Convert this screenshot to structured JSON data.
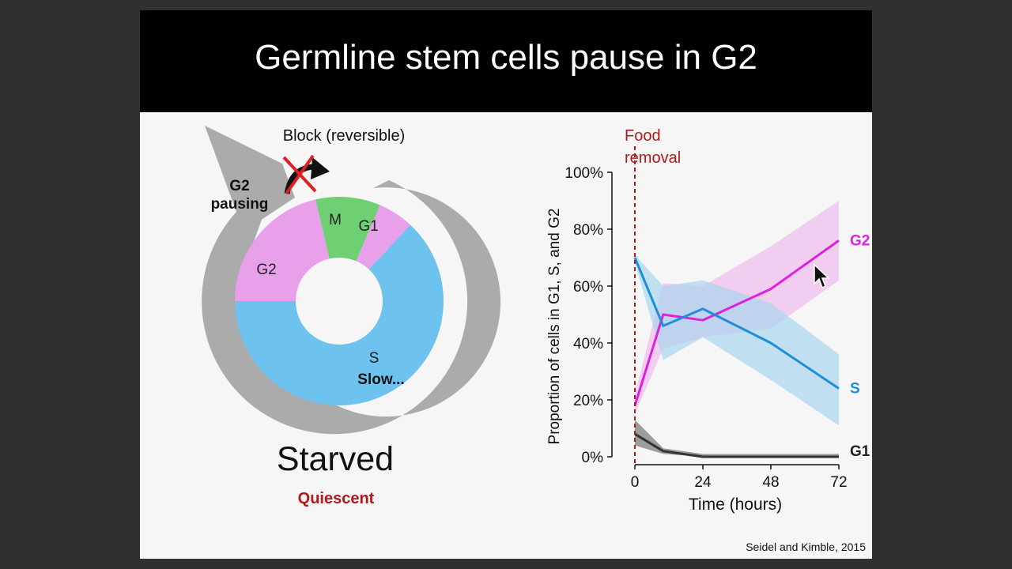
{
  "slide": {
    "title": "Germline stem cells pause in G2",
    "citation": "Seidel and Kimble, 2015"
  },
  "diagram": {
    "block_label": "Block (reversible)",
    "pause_label_line1": "G2",
    "pause_label_line2": "pausing",
    "segments": {
      "m": "M",
      "g1": "G1",
      "g2": "G2",
      "s": "S",
      "s_note": "Slow..."
    },
    "state_label": "Starved",
    "state_sublabel": "Quiescent"
  },
  "colors": {
    "magenta": "#dd22dd",
    "blue": "#1e8fd6",
    "dark": "#333333",
    "red": "#b11a1a",
    "ring_blue": "#6ec2ee",
    "ring_pink": "#e8a0ea",
    "ring_green": "#6fcf73",
    "arrow_gray": "#ababab"
  },
  "chart_data": {
    "type": "line",
    "xlabel": "Time (hours)",
    "ylabel": "Proportion of cells in G1, S, and G2",
    "x_ticks": [
      0,
      24,
      48,
      72
    ],
    "y_ticks": [
      "0%",
      "20%",
      "40%",
      "60%",
      "80%",
      "100%"
    ],
    "xlim": [
      0,
      72
    ],
    "ylim": [
      0,
      100
    ],
    "annotation": {
      "x": 0,
      "line1": "Food",
      "line2": "removal"
    },
    "series": [
      {
        "name": "G2",
        "x": [
          0,
          10,
          24,
          48,
          72
        ],
        "values": [
          18,
          50,
          48,
          59,
          76
        ],
        "lower": [
          15,
          38,
          42,
          45,
          62
        ],
        "upper": [
          22,
          61,
          60,
          74,
          90
        ]
      },
      {
        "name": "S",
        "x": [
          0,
          10,
          24,
          48,
          72
        ],
        "values": [
          70,
          46,
          52,
          40,
          24
        ],
        "lower": [
          68,
          34,
          42,
          27,
          11
        ],
        "upper": [
          71,
          60,
          62,
          54,
          36
        ]
      },
      {
        "name": "G1",
        "x": [
          0,
          10,
          24,
          48,
          72
        ],
        "values": [
          8,
          2,
          0,
          0,
          0
        ],
        "lower": [
          4,
          1,
          0,
          0,
          0
        ],
        "upper": [
          13,
          3,
          1,
          1,
          1
        ]
      }
    ]
  }
}
